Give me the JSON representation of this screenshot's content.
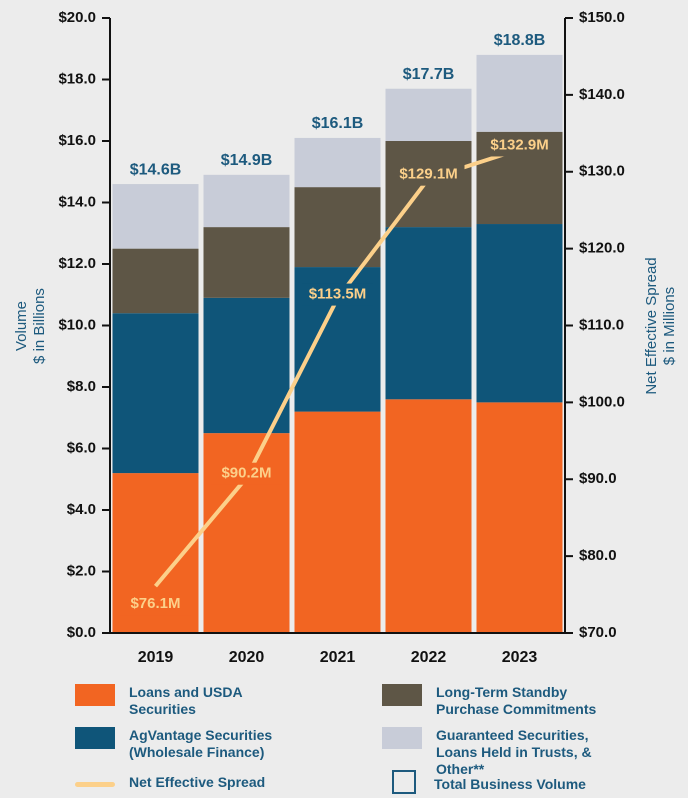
{
  "chart_data": {
    "type": "stacked-bar-line",
    "y_label": [
      "Volume",
      "$ in Billions"
    ],
    "y2_label": [
      "Net Effective Spread",
      "$ in Millions"
    ],
    "categories": [
      "2019",
      "2020",
      "2021",
      "2022",
      "2023"
    ],
    "series": [
      {
        "name": "Loans and USDA Securities",
        "color": "#f26522",
        "values": [
          5.2,
          6.5,
          7.2,
          7.6,
          7.5
        ]
      },
      {
        "name": "AgVantage Securities (Wholesale Finance)",
        "color": "#0f5579",
        "values": [
          5.2,
          4.4,
          4.7,
          5.6,
          5.8
        ]
      },
      {
        "name": "Long-Term Standby Purchase Commitments",
        "color": "#5e5646",
        "values": [
          2.1,
          2.3,
          2.6,
          2.8,
          3.0
        ]
      },
      {
        "name": "Guaranteed Securities, Loans Held in Trusts, & Other**",
        "color": "#c8ccd8",
        "values": [
          2.1,
          1.7,
          1.6,
          1.7,
          2.5
        ]
      },
      {
        "name": "Net Effective Spread",
        "color": "#fcd08a",
        "axis": "y2",
        "values": [
          76.1,
          90.2,
          113.5,
          129.1,
          132.9
        ],
        "value_labels": [
          "$76.1M",
          "$90.2M",
          "$113.5M",
          "$129.1M",
          "$132.9M"
        ]
      }
    ],
    "totals": {
      "name": "Total Business Volume",
      "values": [
        14.6,
        14.9,
        16.1,
        17.7,
        18.8
      ],
      "value_labels": [
        "$14.6B",
        "$14.9B",
        "$16.1B",
        "$17.7B",
        "$18.8B"
      ]
    },
    "ylim": [
      0,
      20
    ],
    "yticks": [
      {
        "value": 0,
        "label": "$0.0"
      },
      {
        "value": 2,
        "label": "$2.0"
      },
      {
        "value": 4,
        "label": "$4.0"
      },
      {
        "value": 6,
        "label": "$6.0"
      },
      {
        "value": 8,
        "label": "$8.0"
      },
      {
        "value": 10,
        "label": "$10.0"
      },
      {
        "value": 12,
        "label": "$12.0"
      },
      {
        "value": 14,
        "label": "$14.0"
      },
      {
        "value": 16,
        "label": "$16.0"
      },
      {
        "value": 18,
        "label": "$18.0"
      },
      {
        "value": 20,
        "label": "$20.0"
      }
    ],
    "y2lim": [
      70,
      150
    ],
    "y2ticks": [
      {
        "value": 70,
        "label": "$70.0"
      },
      {
        "value": 80,
        "label": "$80.0"
      },
      {
        "value": 90,
        "label": "$90.0"
      },
      {
        "value": 100,
        "label": "$100.0"
      },
      {
        "value": 110,
        "label": "$110.0"
      },
      {
        "value": 120,
        "label": "$120.0"
      },
      {
        "value": 130,
        "label": "$130.0"
      },
      {
        "value": 140,
        "label": "$140.0"
      },
      {
        "value": 150,
        "label": "$150.0"
      }
    ]
  }
}
